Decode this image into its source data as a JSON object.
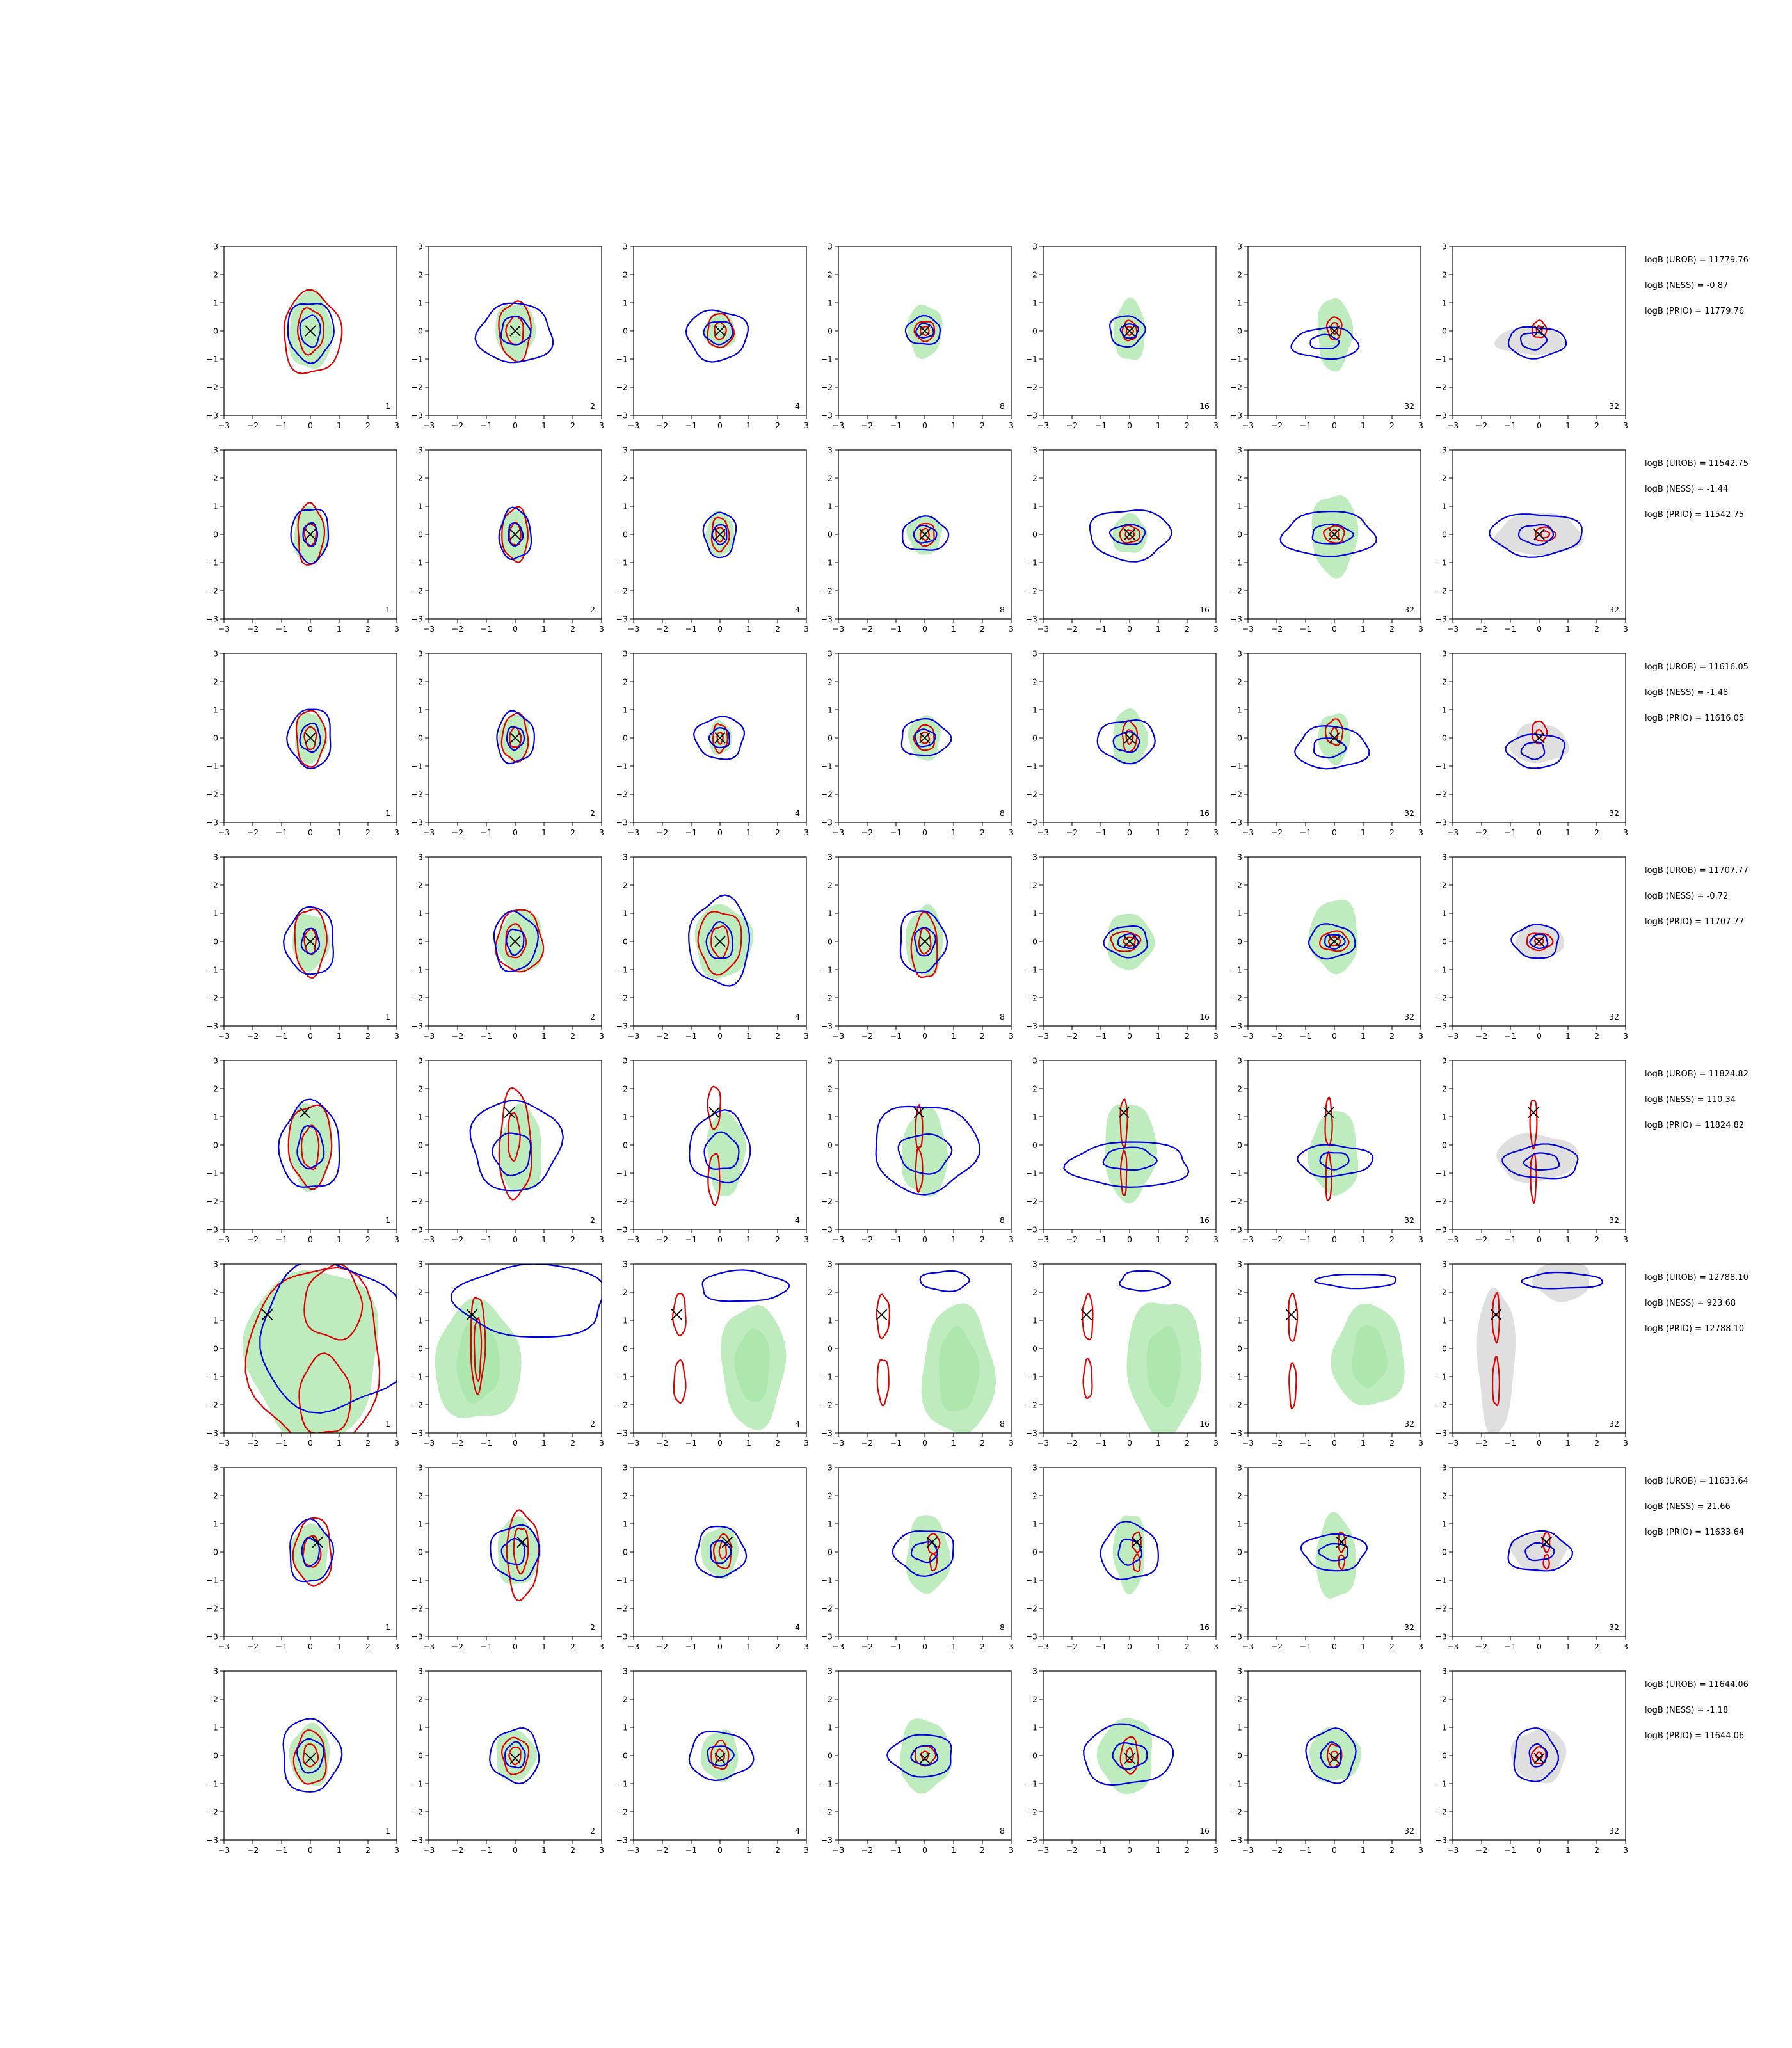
{
  "chart_data": {
    "type": "contour",
    "rows": 8,
    "cols": 7,
    "xlim": [
      -3,
      3
    ],
    "ylim": [
      -3,
      3
    ],
    "ticks": [
      -3,
      -2,
      -1,
      0,
      1,
      2,
      3
    ],
    "tick_labels": [
      "−3",
      "−2",
      "−1",
      "0",
      "1",
      "2",
      "3"
    ],
    "panel_labels": [
      "1",
      "2",
      "4",
      "8",
      "16",
      "32",
      "32"
    ],
    "last_column_fill": "gray",
    "colors": {
      "fill_green": "#a8e6a8",
      "fill_gray": "#d4d4d4",
      "red": "#dd0000",
      "blue": "#0000dd",
      "marker": "#000000"
    },
    "row_annotations": [
      {
        "urob": "logB (UROB) = 11779.76",
        "ness": "logB (NESS) = -0.87",
        "prio": "logB (PRIO) = 11779.76"
      },
      {
        "urob": "logB (UROB) = 11542.75",
        "ness": "logB (NESS) = -1.44",
        "prio": "logB (PRIO) = 11542.75"
      },
      {
        "urob": "logB (UROB) = 11616.05",
        "ness": "logB (NESS) = -1.48",
        "prio": "logB (PRIO) = 11616.05"
      },
      {
        "urob": "logB (UROB) = 11707.77",
        "ness": "logB (NESS) = -0.72",
        "prio": "logB (PRIO) = 11707.77"
      },
      {
        "urob": "logB (UROB) = 11824.82",
        "ness": "logB (NESS) = 110.34",
        "prio": "logB (PRIO) = 11824.82"
      },
      {
        "urob": "logB (UROB) = 12788.10",
        "ness": "logB (NESS) = 923.68",
        "prio": "logB (PRIO) = 12788.10"
      },
      {
        "urob": "logB (UROB) = 11633.64",
        "ness": "logB (NESS) = 21.66",
        "prio": "logB (PRIO) = 11633.64"
      },
      {
        "urob": "logB (UROB) = 11644.06",
        "ness": "logB (NESS) = -1.18",
        "prio": "logB (PRIO) = 11644.06"
      }
    ],
    "markers": [
      [
        0,
        0
      ],
      [
        0,
        0
      ],
      [
        0,
        0
      ],
      [
        0,
        0
      ],
      [
        -0.2,
        1.15
      ],
      [
        -1.5,
        1.2
      ],
      [
        0.25,
        0.35
      ],
      [
        0,
        -0.1
      ]
    ]
  }
}
